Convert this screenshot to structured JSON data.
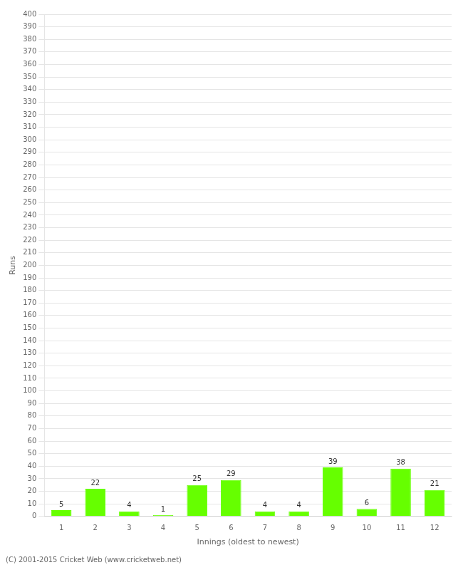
{
  "chart_data": {
    "type": "bar",
    "x_label": "Innings (oldest to newest)",
    "y_label": "Runs",
    "categories": [
      "1",
      "2",
      "3",
      "4",
      "5",
      "6",
      "7",
      "8",
      "9",
      "10",
      "11",
      "12"
    ],
    "values": [
      5,
      22,
      4,
      1,
      25,
      29,
      4,
      4,
      39,
      6,
      38,
      21
    ],
    "color": "#66ff00",
    "data_labels": true,
    "ylim": [
      0,
      400
    ],
    "yticks": [
      0,
      10,
      20,
      30,
      40,
      50,
      60,
      70,
      80,
      90,
      100,
      110,
      120,
      130,
      140,
      150,
      160,
      170,
      180,
      190,
      200,
      210,
      220,
      230,
      240,
      250,
      260,
      270,
      280,
      290,
      300,
      310,
      320,
      330,
      340,
      350,
      360,
      370,
      380,
      390,
      400
    ],
    "grid": true,
    "annotations": [
      "(C) 2001-2015 Cricket Web (www.cricketweb.net)"
    ]
  }
}
